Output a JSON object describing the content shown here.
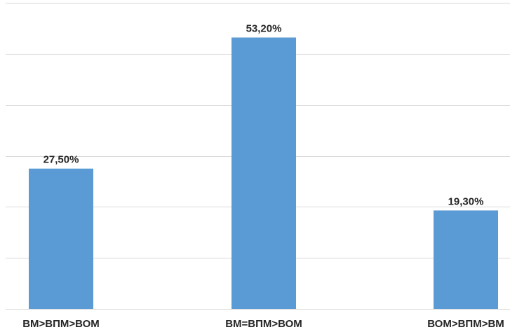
{
  "chart_data": {
    "type": "bar",
    "title": "",
    "xlabel": "",
    "ylabel": "",
    "categories": [
      "ВМ>ВПМ>ВОМ",
      "ВМ=ВПМ>ВОМ",
      "ВОМ>ВПМ>ВМ"
    ],
    "values": [
      27.5,
      53.2,
      19.3
    ],
    "value_labels": [
      "27,50%",
      "53,20%",
      "19,30%"
    ],
    "ylim": [
      0,
      60
    ],
    "y_axis_visible": false,
    "grid": true,
    "legend": "none",
    "colors": {
      "bar": "#5b9bd5",
      "grid": "#d9d9d9",
      "text": "#262626"
    }
  }
}
